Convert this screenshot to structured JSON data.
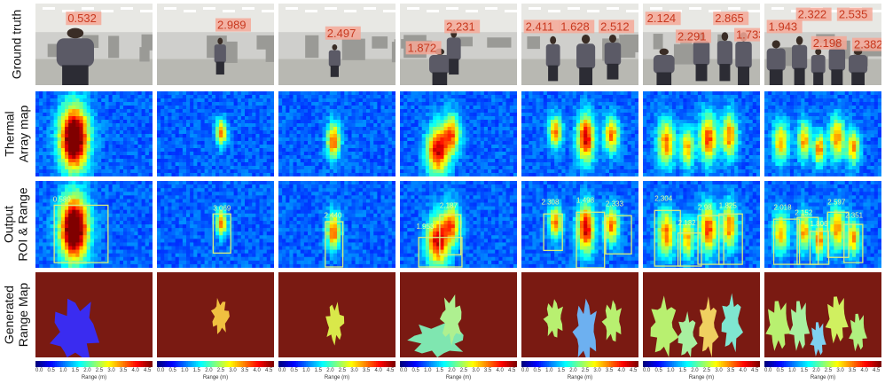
{
  "row_labels": {
    "ground_truth": [
      "Ground truth"
    ],
    "thermal": [
      "Thermal",
      "Array map"
    ],
    "output": [
      "Output",
      "ROI & Range"
    ],
    "range_map": [
      "Generated",
      "Range Map"
    ]
  },
  "colorbar": {
    "ticks": [
      "0.0",
      "0.5",
      "1.0",
      "1.5",
      "2.0",
      "2.5",
      "3.0",
      "3.5",
      "4.0",
      "4.5"
    ],
    "label": "Range (m)"
  },
  "columns": [
    {
      "gt": [
        {
          "v": "0.532"
        }
      ],
      "out": [
        {
          "v": "0.589"
        }
      ]
    },
    {
      "gt": [
        {
          "v": "2.989"
        }
      ],
      "out": [
        {
          "v": "3.069"
        }
      ]
    },
    {
      "gt": [
        {
          "v": "2.497"
        }
      ],
      "out": [
        {
          "v": "2.440"
        }
      ]
    },
    {
      "gt": [
        {
          "v": "1.872"
        },
        {
          "v": "2.231"
        }
      ],
      "out": [
        {
          "v": "1.953"
        },
        {
          "v": "2.187"
        }
      ]
    },
    {
      "gt": [
        {
          "v": "2.411"
        },
        {
          "v": "1.628"
        },
        {
          "v": "2.512"
        }
      ],
      "out": [
        {
          "v": "2.308"
        },
        {
          "v": "1.498"
        },
        {
          "v": "2.333"
        }
      ]
    },
    {
      "gt": [
        {
          "v": "2.124"
        },
        {
          "v": "2.291"
        },
        {
          "v": "2.865"
        },
        {
          "v": "1.733"
        }
      ],
      "out": [
        {
          "v": "2.304"
        },
        {
          "v": "2.132"
        },
        {
          "v": "2.98"
        },
        {
          "v": "1.825"
        }
      ]
    },
    {
      "gt": [
        {
          "v": "1.943"
        },
        {
          "v": "2.322"
        },
        {
          "v": "2.198"
        },
        {
          "v": "2.535"
        },
        {
          "v": "2.382"
        }
      ],
      "out": [
        {
          "v": "2.018"
        },
        {
          "v": "2.152"
        },
        {
          "v": "1.806"
        },
        {
          "v": "2.597"
        },
        {
          "v": "2.351"
        }
      ]
    }
  ],
  "colors": {
    "range_bg": "#7a1a12",
    "roi_box": "#d9ef7a",
    "gt_label_bg": "#f4a898",
    "gt_label_text": "#c8391f",
    "thermal_bg": "#2f50e0"
  }
}
